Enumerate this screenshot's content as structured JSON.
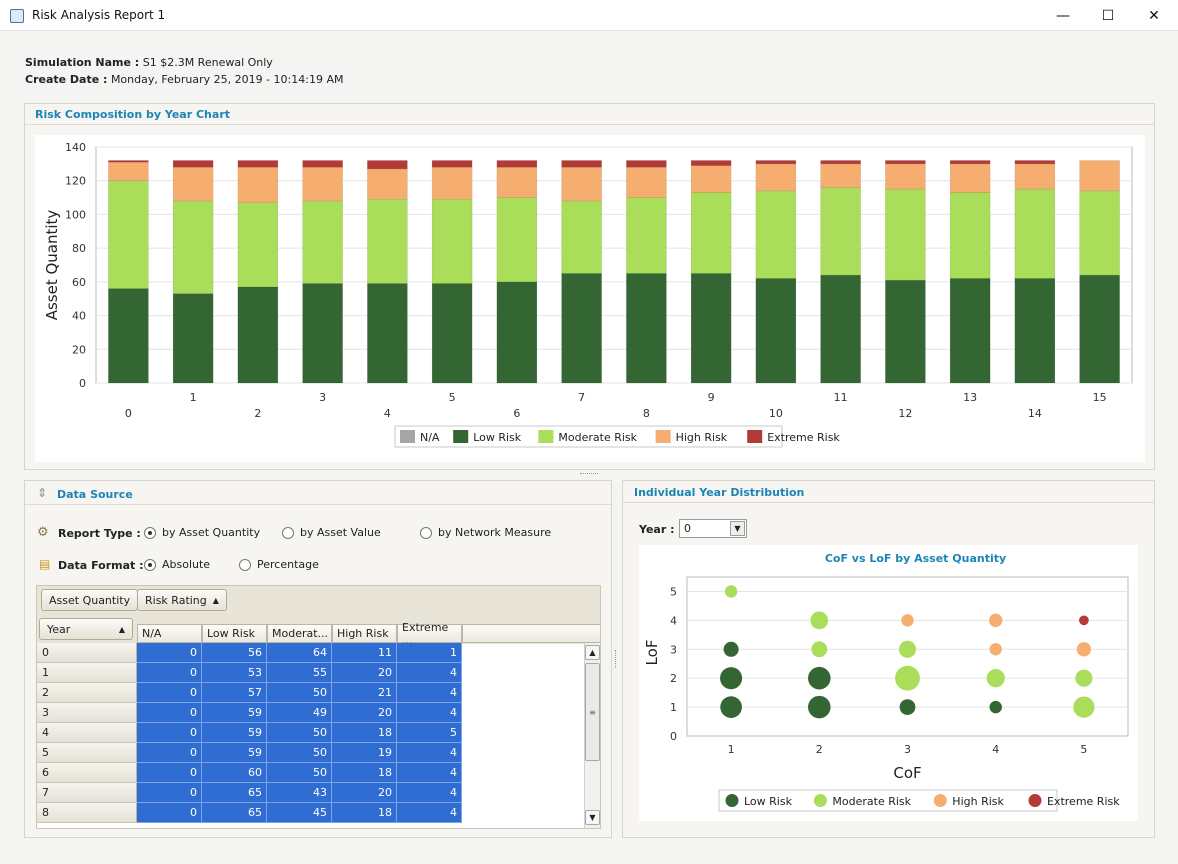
{
  "window": {
    "title": "Risk Analysis Report 1",
    "minimize": "—",
    "maximize": "☐",
    "close": "✕"
  },
  "header": {
    "sim_label": "Simulation Name :",
    "sim_value": "S1 $2.3M Renewal Only",
    "date_label": "Create Date :",
    "date_value": "Monday, February 25, 2019 - 10:14:19 AM"
  },
  "colors": {
    "na": "#a6a6a6",
    "low": "#336633",
    "moderate": "#aadd59",
    "high": "#f6ae70",
    "extreme": "#b33a36",
    "accent": "#1d85b5",
    "selection": "#2f6dd3"
  },
  "top_panel": {
    "title": "Risk Composition by Year Chart"
  },
  "chart_data": [
    {
      "type": "bar",
      "stacked": true,
      "title": "",
      "xlabel": "",
      "ylabel": "Asset Quantity",
      "ylim": [
        0,
        140
      ],
      "yticks": [
        0,
        20,
        40,
        60,
        80,
        100,
        120,
        140
      ],
      "categories": [
        "0",
        "1",
        "2",
        "3",
        "4",
        "5",
        "6",
        "7",
        "8",
        "9",
        "10",
        "11",
        "12",
        "13",
        "14",
        "15"
      ],
      "series": [
        {
          "name": "N/A",
          "color": "#a6a6a6",
          "values": [
            0,
            0,
            0,
            0,
            0,
            0,
            0,
            0,
            0,
            0,
            0,
            0,
            0,
            0,
            0,
            0
          ]
        },
        {
          "name": "Low Risk",
          "color": "#336633",
          "values": [
            56,
            53,
            57,
            59,
            59,
            59,
            60,
            65,
            65,
            65,
            62,
            64,
            61,
            62,
            62,
            64
          ]
        },
        {
          "name": "Moderate Risk",
          "color": "#aadd59",
          "values": [
            64,
            55,
            50,
            49,
            50,
            50,
            50,
            43,
            45,
            48,
            52,
            52,
            54,
            51,
            53,
            50
          ]
        },
        {
          "name": "High Risk",
          "color": "#f6ae70",
          "values": [
            11,
            20,
            21,
            20,
            18,
            19,
            18,
            20,
            18,
            16,
            16,
            14,
            15,
            17,
            15,
            18
          ]
        },
        {
          "name": "Extreme Risk",
          "color": "#b33a36",
          "values": [
            1,
            4,
            4,
            4,
            5,
            4,
            4,
            4,
            4,
            3,
            2,
            2,
            2,
            2,
            2,
            0
          ]
        }
      ],
      "legend": "bottom-center",
      "grid": true
    },
    {
      "type": "scatter",
      "title": "CoF vs LoF by Asset Quantity",
      "xlabel": "CoF",
      "ylabel": "LoF",
      "xlim": [
        0.5,
        5.5
      ],
      "ylim": [
        0,
        5.5
      ],
      "xticks": [
        1,
        2,
        3,
        4,
        5
      ],
      "yticks": [
        0,
        1,
        2,
        3,
        4,
        5
      ],
      "series": [
        {
          "name": "Low Risk",
          "color": "#336633",
          "points": [
            [
              1,
              1,
              18
            ],
            [
              1,
              2,
              19
            ],
            [
              1,
              3,
              6
            ],
            [
              2,
              1,
              20
            ],
            [
              2,
              2,
              20
            ],
            [
              2,
              3,
              0
            ],
            [
              3,
              1,
              7
            ],
            [
              4,
              1,
              3
            ]
          ]
        },
        {
          "name": "Moderate Risk",
          "color": "#aadd59",
          "points": [
            [
              1,
              5,
              3
            ],
            [
              2,
              3,
              7
            ],
            [
              2,
              4,
              10
            ],
            [
              3,
              2,
              26
            ],
            [
              3,
              3,
              9
            ],
            [
              4,
              2,
              11
            ],
            [
              5,
              1,
              17
            ],
            [
              5,
              2,
              9
            ]
          ]
        },
        {
          "name": "High Risk",
          "color": "#f6ae70",
          "points": [
            [
              3,
              4,
              3
            ],
            [
              4,
              3,
              3
            ],
            [
              4,
              4,
              4
            ],
            [
              5,
              3,
              5
            ]
          ]
        },
        {
          "name": "Extreme Risk",
          "color": "#b33a36",
          "points": [
            [
              5,
              4,
              1
            ]
          ]
        }
      ],
      "legend": "bottom-center",
      "grid": true
    }
  ],
  "data_source": {
    "title": "Data Source",
    "report_type_label": "Report Type :",
    "report_types": [
      "by Asset Quantity",
      "by Asset Value",
      "by Network Measure"
    ],
    "data_format_label": "Data Format :",
    "data_formats": [
      "Absolute",
      "Percentage"
    ],
    "group_buttons": [
      "Asset Quantity",
      "Risk Rating"
    ],
    "year_button": "Year",
    "columns": [
      "N/A",
      "Low Risk",
      "Moderat...",
      "High Risk",
      "Extreme ..."
    ],
    "rows": [
      {
        "year": "0",
        "cells": [
          "0",
          "56",
          "64",
          "11",
          "1"
        ]
      },
      {
        "year": "1",
        "cells": [
          "0",
          "53",
          "55",
          "20",
          "4"
        ]
      },
      {
        "year": "2",
        "cells": [
          "0",
          "57",
          "50",
          "21",
          "4"
        ]
      },
      {
        "year": "3",
        "cells": [
          "0",
          "59",
          "49",
          "20",
          "4"
        ]
      },
      {
        "year": "4",
        "cells": [
          "0",
          "59",
          "50",
          "18",
          "5"
        ]
      },
      {
        "year": "5",
        "cells": [
          "0",
          "59",
          "50",
          "19",
          "4"
        ]
      },
      {
        "year": "6",
        "cells": [
          "0",
          "60",
          "50",
          "18",
          "4"
        ]
      },
      {
        "year": "7",
        "cells": [
          "0",
          "65",
          "43",
          "20",
          "4"
        ]
      },
      {
        "year": "8",
        "cells": [
          "0",
          "65",
          "45",
          "18",
          "4"
        ]
      }
    ]
  },
  "distribution": {
    "title": "Individual Year Distribution",
    "year_label": "Year :",
    "year_value": "0",
    "legend": [
      "Low Risk",
      "Moderate Risk",
      "High Risk",
      "Extreme Risk"
    ]
  }
}
